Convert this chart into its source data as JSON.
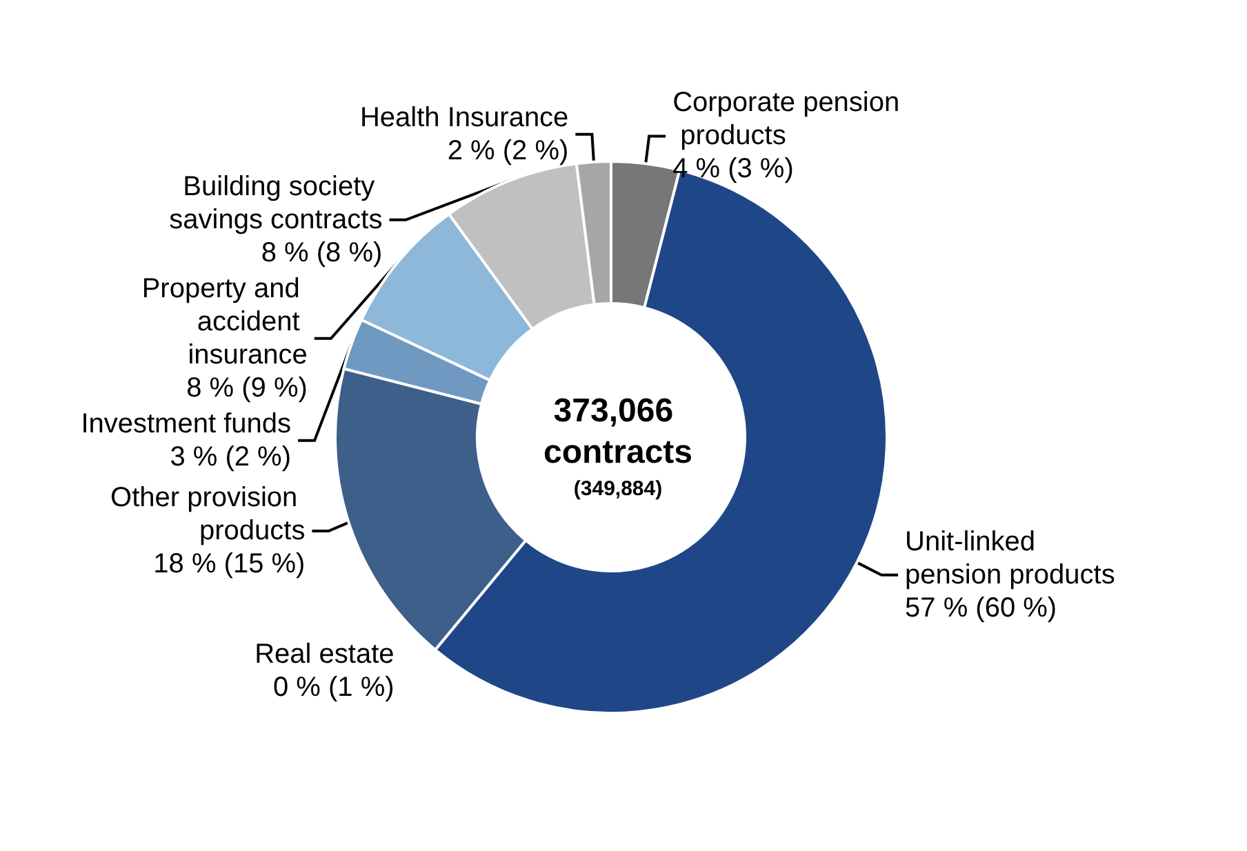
{
  "chart_data": {
    "type": "donut",
    "title": "373,066 contracts",
    "subtitle": "(349,884)",
    "legend": false,
    "categories": [
      "Corporate pension products",
      "Unit-linked pension products",
      "Real estate",
      "Other provision products",
      "Investment funds",
      "Property and accident insurance",
      "Building society savings contracts",
      "Health Insurance"
    ],
    "values": [
      4,
      57,
      0,
      18,
      3,
      8,
      8,
      2
    ],
    "value_labels": [
      "4 % (3 %)",
      "57 % (60 %)",
      "0 % (1 %)",
      "18 % (15 %)",
      "3 % (2 %)",
      "8 % (9 %)",
      "8 % (8 %)",
      "2 % (2 %)"
    ],
    "colors": [
      "#777777",
      "#1f4788",
      "#aaaaaa",
      "#3d5f8a",
      "#6f99c0",
      "#8db8d9",
      "#c0c0c0",
      "#a6a6a6"
    ]
  }
}
